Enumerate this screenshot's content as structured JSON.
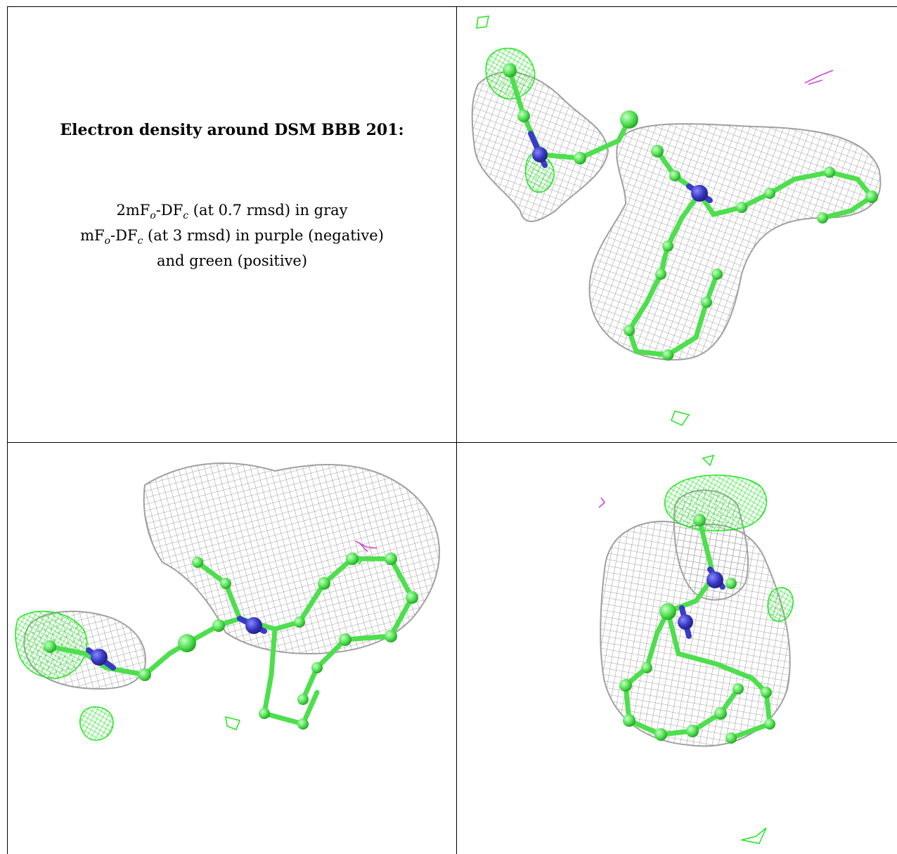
{
  "caption": {
    "title": "Electron density around DSM BBB 201:",
    "line1_prefix": "2mF",
    "line1_sub1": "o",
    "line1_mid": "-DF",
    "line1_sub2": "c",
    "line1_suffix": " (at 0.7 rmsd) in gray",
    "line2_prefix": "mF",
    "line2_sub1": "o",
    "line2_mid": "-DF",
    "line2_sub2": "c",
    "line2_suffix": " (at 3 rmsd) in purple (negative)",
    "line3": "and green (positive)"
  },
  "colors": {
    "mesh_gray": "#a9a9a9",
    "positive_green": "#1ee61e",
    "negative_purple": "#d246d2",
    "atom_green": "#5be85b",
    "nitrogen_blue": "#3a3ac8",
    "border": "#000000"
  },
  "views": [
    "view-top-right",
    "view-bottom-left",
    "view-bottom-right"
  ]
}
